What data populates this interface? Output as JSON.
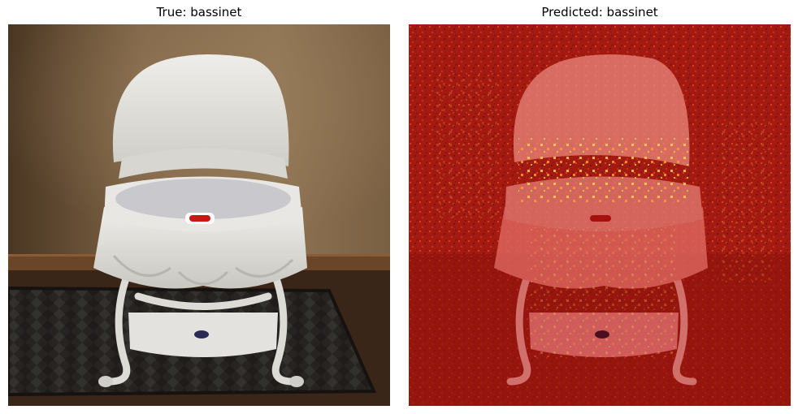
{
  "panels": [
    {
      "title": "True: bassinet",
      "kind": "photo"
    },
    {
      "title": "Predicted: bassinet",
      "kind": "saliency-overlay"
    }
  ],
  "colors": {
    "wall": "#8a6f4f",
    "bassinet": "#e4e3df",
    "floor": "#6a4528",
    "rug": "#2a2620",
    "overlay_red": "#b82216",
    "hotspot_yellow": "#e8e040"
  }
}
